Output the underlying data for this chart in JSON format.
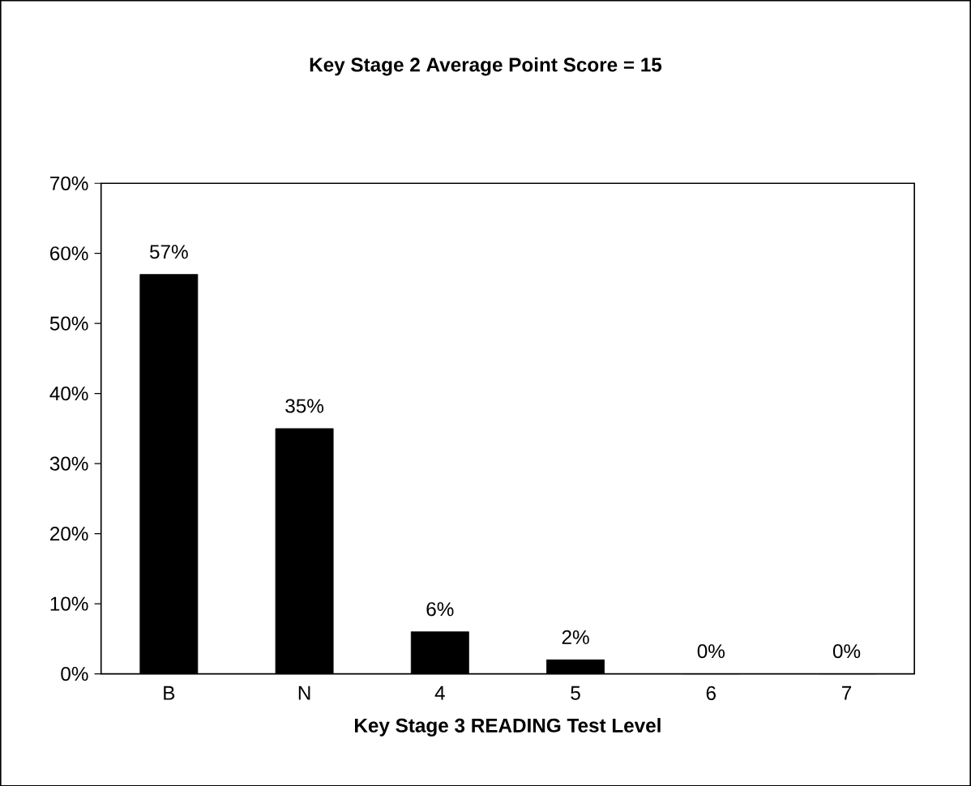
{
  "chart_data": {
    "type": "bar",
    "title": "Key Stage 2 Average Point Score = 15",
    "xlabel": "Key Stage 3 READING Test Level",
    "categories": [
      "B",
      "N",
      "4",
      "5",
      "6",
      "7"
    ],
    "values": [
      57,
      35,
      6,
      2,
      0,
      0
    ],
    "value_labels": [
      "57%",
      "35%",
      "6%",
      "2%",
      "0%",
      "0%"
    ],
    "color": "#000000",
    "ylim": [
      0,
      70
    ],
    "yticks": [
      {
        "value": 0,
        "label": "0%"
      },
      {
        "value": 10,
        "label": "10%"
      },
      {
        "value": 20,
        "label": "20%"
      },
      {
        "value": 30,
        "label": "30%"
      },
      {
        "value": 40,
        "label": "40%"
      },
      {
        "value": 50,
        "label": "50%"
      },
      {
        "value": 60,
        "label": "60%"
      },
      {
        "value": 70,
        "label": "70%"
      }
    ],
    "grid": false
  }
}
